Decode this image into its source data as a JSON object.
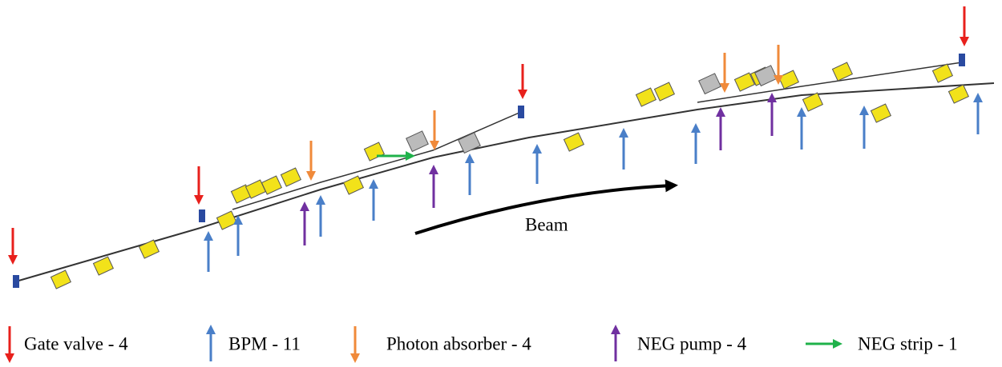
{
  "diagram": {
    "beam_label": "Beam",
    "legend": [
      "Gate valve - 4",
      "BPM - 11",
      "Photon absorber - 4",
      "NEG pump - 4",
      "NEG strip - 1"
    ]
  }
}
